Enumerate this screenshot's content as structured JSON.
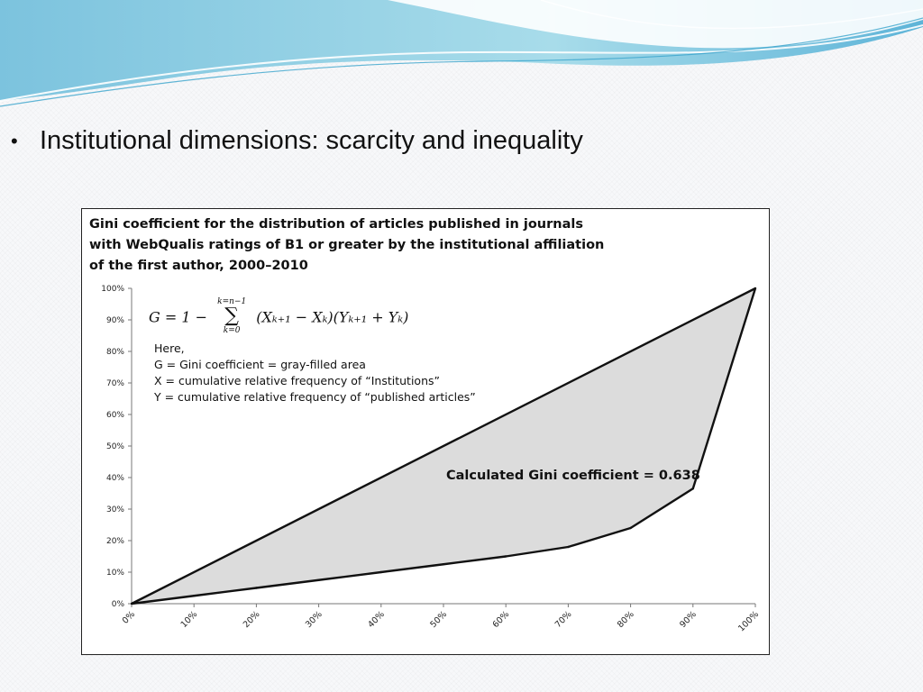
{
  "slide": {
    "bullet": "•",
    "heading": "Institutional dimensions: scarcity and inequality"
  },
  "colors": {
    "wave_dark": "#5fb3d6",
    "wave_light": "#b9e3ef",
    "fill_area": "#dcdcdc",
    "line": "#111111"
  },
  "chart_data": {
    "type": "area",
    "title_lines": [
      "Gini coefficient for the distribution of articles published in journals",
      "with WebQualis ratings of B1 or greater by the institutional affiliation",
      "of the first author, 2000–2010"
    ],
    "formula": {
      "lhs": "G = 1 −",
      "upper": "k=n−1",
      "lower": "k=0",
      "sigma": "∑",
      "term": "(Xₖ₊₁ − Xₖ)(Yₖ₊₁ + Yₖ)"
    },
    "notes": [
      "Here,",
      "G = Gini coefficient = gray-filled area",
      "X = cumulative relative frequency of “Institutions”",
      "Y = cumulative relative frequency of “published articles”"
    ],
    "annotation": "Calculated Gini coefficient = 0.638",
    "x_ticks": [
      "0%",
      "10%",
      "20%",
      "30%",
      "40%",
      "50%",
      "60%",
      "70%",
      "80%",
      "90%",
      "100%"
    ],
    "y_ticks": [
      "0%",
      "10%",
      "20%",
      "30%",
      "40%",
      "50%",
      "60%",
      "70%",
      "80%",
      "90%",
      "100%"
    ],
    "xlim": [
      0,
      100
    ],
    "ylim": [
      0,
      100
    ],
    "series": [
      {
        "values_x": [
          0,
          10,
          20,
          30,
          40,
          50,
          60,
          70,
          80,
          90,
          100
        ],
        "values_y": [
          0,
          2.5,
          5,
          7.5,
          10,
          12.5,
          15,
          18,
          24,
          36.5,
          100
        ]
      },
      {
        "values_x": [
          0,
          100
        ],
        "values_y": [
          0,
          100
        ]
      }
    ],
    "grid": false,
    "legend": "none"
  }
}
